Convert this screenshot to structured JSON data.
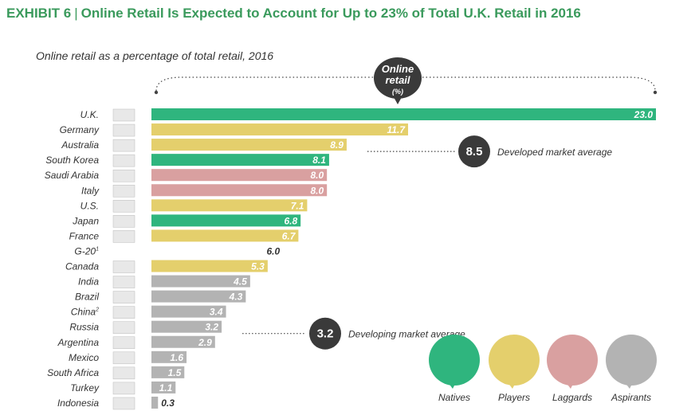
{
  "header": {
    "exhibit": "EXHIBIT 6",
    "title": "Online Retail Is Expected to Account for Up to 23% of Total U.K. Retail in 2016",
    "subtitle": "Online retail as a percentage of total retail, 2016"
  },
  "colors": {
    "Natives": "#2fb57e",
    "Players": "#e4cf6c",
    "Laggards": "#d9a0a0",
    "Aspirants": "#b3b3b3",
    "G-20": "#ffffff",
    "title": "#3a9a5c",
    "avg_circle": "#3a3a3a"
  },
  "chart_data": {
    "type": "bar",
    "orientation": "horizontal",
    "bubble": [
      "Online",
      "retail",
      "(%)"
    ],
    "xlim": [
      0,
      23
    ],
    "categories": [
      "U.K.",
      "Germany",
      "Australia",
      "South Korea",
      "Saudi Arabia",
      "Italy",
      "U.S.",
      "Japan",
      "France",
      "G-20",
      "Canada",
      "India",
      "Brazil",
      "China",
      "Russia",
      "Argentina",
      "Mexico",
      "South Africa",
      "Turkey",
      "Indonesia"
    ],
    "footnote_marks": [
      "",
      "",
      "",
      "",
      "",
      "",
      "",
      "",
      "",
      "1",
      "",
      "",
      "",
      "2",
      "",
      "",
      "",
      "",
      "",
      ""
    ],
    "values": [
      23.0,
      11.7,
      8.9,
      8.1,
      8.0,
      8.0,
      7.1,
      6.8,
      6.7,
      6.0,
      5.3,
      4.5,
      4.3,
      3.4,
      3.2,
      2.9,
      1.6,
      1.5,
      1.1,
      0.3
    ],
    "value_labels": [
      "23.0",
      "11.7",
      "8.9",
      "8.1",
      "8.0",
      "8.0",
      "7.1",
      "6.8",
      "6.7",
      "6.0",
      "5.3",
      "4.5",
      "4.3",
      "3.4",
      "3.2",
      "2.9",
      "1.6",
      "1.5",
      "1.1",
      "0.3"
    ],
    "groups": [
      "Natives",
      "Players",
      "Players",
      "Natives",
      "Laggards",
      "Laggards",
      "Players",
      "Natives",
      "Players",
      "G-20",
      "Players",
      "Aspirants",
      "Aspirants",
      "Aspirants",
      "Aspirants",
      "Aspirants",
      "Aspirants",
      "Aspirants",
      "Aspirants",
      "Aspirants"
    ],
    "annotations": [
      {
        "value": "8.5",
        "label": "Developed market average",
        "anchor": "Australia"
      },
      {
        "value": "3.2",
        "label": "Developing market average",
        "anchor": "Russia"
      }
    ],
    "legend": [
      "Natives",
      "Players",
      "Laggards",
      "Aspirants"
    ],
    "legend_position": "bottom-right"
  }
}
